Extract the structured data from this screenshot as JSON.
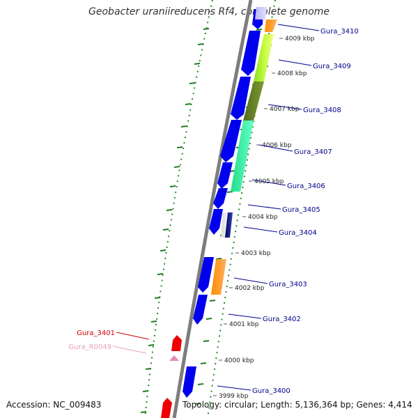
{
  "title": "Geobacter uraniireducens Rf4, complete genome",
  "accession": "Accession: NC_009483",
  "summary": "Topology: circular; Length: 5,136,364 bp; Genes: 4,414",
  "colors": {
    "backbone": "#808080",
    "forward_gene": "#0000ee",
    "reverse_gene": "#ee0000",
    "gc_ticks": "#228b22",
    "ruler_ticks": "#1f7a1f",
    "label_forward": "#00008b",
    "label_reverse": "#cc0000",
    "label_rna": "#e8a0c0"
  },
  "kbp_ticks": [
    "4009 kbp",
    "4008 kbp",
    "4007 kbp",
    "4006 kbp",
    "4005 kbp",
    "4004 kbp",
    "4003 kbp",
    "4002 kbp",
    "4001 kbp",
    "4000 kbp",
    "3999 kbp"
  ],
  "gene_labels": [
    {
      "text": "Gura_3410",
      "kind": "forward"
    },
    {
      "text": "Gura_3409",
      "kind": "forward"
    },
    {
      "text": "Gura_3408",
      "kind": "forward"
    },
    {
      "text": "Gura_3407",
      "kind": "forward"
    },
    {
      "text": "Gura_3406",
      "kind": "forward"
    },
    {
      "text": "Gura_3405",
      "kind": "forward"
    },
    {
      "text": "Gura_3404",
      "kind": "forward"
    },
    {
      "text": "Gura_3403",
      "kind": "forward"
    },
    {
      "text": "Gura_3402",
      "kind": "forward"
    },
    {
      "text": "Gura_3400",
      "kind": "forward"
    },
    {
      "text": "Gura_3401",
      "kind": "reverse"
    },
    {
      "text": "Gura_R0049",
      "kind": "rna"
    }
  ]
}
